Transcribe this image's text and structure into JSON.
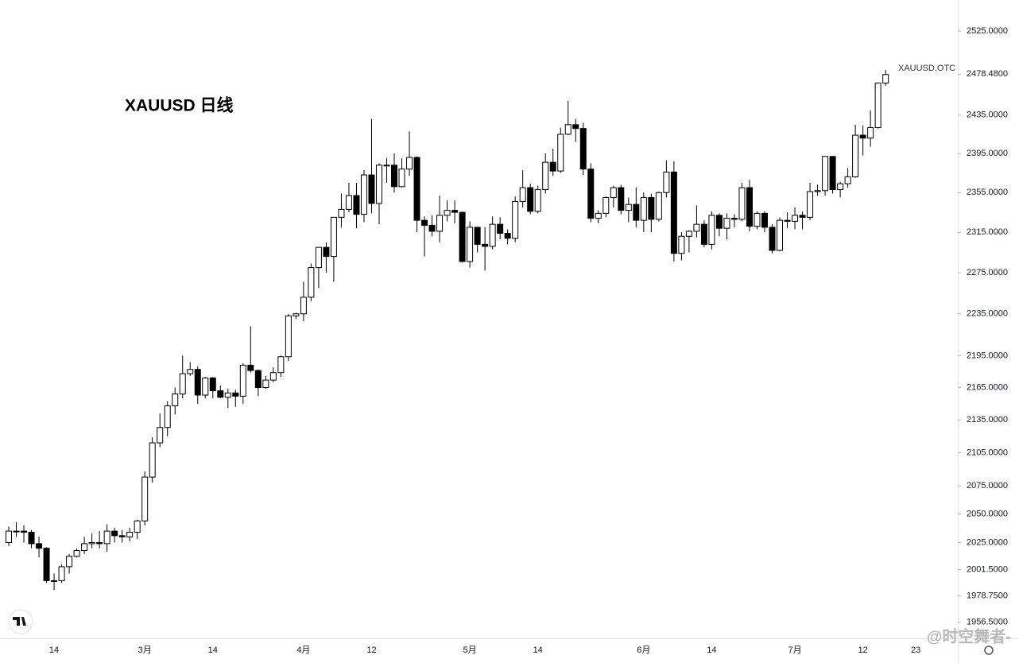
{
  "chart_data": {
    "type": "candlestick",
    "title": "XAUUSD 日线",
    "symbol_label": "XAUUSD.OTC",
    "watermark": "@时空舞者-",
    "log_scale": true,
    "grid": false,
    "up_color": "#ffffff",
    "down_color": "#000000",
    "ylim": [
      1943,
      2559
    ],
    "yticks": [
      {
        "value": 2525,
        "label": "2525.0000"
      },
      {
        "value": 2478.48,
        "label": "2478.4800"
      },
      {
        "value": 2435,
        "label": "2435.0000"
      },
      {
        "value": 2395,
        "label": "2395.0000"
      },
      {
        "value": 2355,
        "label": "2355.0000"
      },
      {
        "value": 2315,
        "label": "2315.0000"
      },
      {
        "value": 2275,
        "label": "2275.0000"
      },
      {
        "value": 2235,
        "label": "2235.0000"
      },
      {
        "value": 2195,
        "label": "2195.0000"
      },
      {
        "value": 2165,
        "label": "2165.0000"
      },
      {
        "value": 2135,
        "label": "2135.0000"
      },
      {
        "value": 2105,
        "label": "2105.0000"
      },
      {
        "value": 2075,
        "label": "2075.0000"
      },
      {
        "value": 2050,
        "label": "2050.0000"
      },
      {
        "value": 2025,
        "label": "2025.0000"
      },
      {
        "value": 2001.5,
        "label": "2001.5000"
      },
      {
        "value": 1978.75,
        "label": "1978.7500"
      },
      {
        "value": 1956.5,
        "label": "1956.5000"
      }
    ],
    "categories": [
      null,
      null,
      null,
      null,
      null,
      null,
      "14",
      null,
      null,
      null,
      null,
      null,
      null,
      null,
      null,
      null,
      null,
      null,
      "3月",
      null,
      null,
      null,
      null,
      null,
      null,
      null,
      null,
      "14",
      null,
      null,
      null,
      null,
      null,
      null,
      null,
      null,
      null,
      null,
      null,
      "4月",
      null,
      null,
      null,
      null,
      null,
      null,
      null,
      null,
      "12",
      null,
      null,
      null,
      null,
      null,
      null,
      null,
      null,
      null,
      null,
      null,
      null,
      "5月",
      null,
      null,
      null,
      null,
      null,
      null,
      null,
      null,
      "14",
      null,
      null,
      null,
      null,
      null,
      null,
      null,
      null,
      null,
      null,
      null,
      null,
      null,
      "6月",
      null,
      null,
      null,
      null,
      null,
      null,
      null,
      null,
      "14",
      null,
      null,
      null,
      null,
      null,
      null,
      null,
      null,
      null,
      null,
      "7月",
      null,
      null,
      null,
      null,
      null,
      null,
      null,
      null,
      "12",
      null,
      null,
      null,
      null,
      null,
      null,
      "23"
    ],
    "open": [
      2025,
      2035,
      2035,
      2034,
      2024,
      2020,
      1992,
      1992,
      2004,
      2013,
      2018,
      2024,
      2025,
      2024,
      2035,
      2031,
      2030,
      2034,
      2044,
      2083,
      2114,
      2128,
      2148,
      2159,
      2178,
      2182,
      2158,
      2174,
      2162,
      2156,
      2160,
      2157,
      2186,
      2181,
      2165,
      2172,
      2179,
      2194,
      2233,
      2235,
      2251,
      2280,
      2300,
      2291,
      2330,
      2338,
      2352,
      2333,
      2373,
      2344,
      2383,
      2383,
      2361,
      2379,
      2391,
      2327,
      2322,
      2316,
      2332,
      2337,
      2335,
      2286,
      2320,
      2303,
      2301,
      2323,
      2314,
      2309,
      2346,
      2360,
      2336,
      2358,
      2386,
      2377,
      2415,
      2425,
      2421,
      2379,
      2329,
      2334,
      2350,
      2360,
      2337,
      2343,
      2327,
      2350,
      2328,
      2355,
      2376,
      2294,
      2311,
      2316,
      2323,
      2303,
      2332,
      2319,
      2329,
      2328,
      2360,
      2321,
      2334,
      2320,
      2297,
      2327,
      2326,
      2332,
      2330,
      2356,
      2357,
      2392,
      2358,
      2364,
      2371,
      2414,
      2411,
      2422,
      2469,
      null,
      null,
      null,
      null
    ],
    "high": [
      2039,
      2043,
      2040,
      2036,
      2030,
      2021,
      1998,
      2006,
      2015,
      2020,
      2030,
      2033,
      2035,
      2041,
      2038,
      2036,
      2038,
      2045,
      2088,
      2119,
      2141,
      2152,
      2165,
      2195,
      2189,
      2185,
      2175,
      2175,
      2167,
      2164,
      2163,
      2188,
      2223,
      2182,
      2176,
      2184,
      2195,
      2235,
      2236,
      2266,
      2284,
      2300,
      2305,
      2330,
      2354,
      2365,
      2365,
      2378,
      2431,
      2385,
      2390,
      2395,
      2390,
      2418,
      2392,
      2331,
      2332,
      2352,
      2347,
      2347,
      2336,
      2326,
      2320,
      2320,
      2331,
      2330,
      2318,
      2351,
      2378,
      2364,
      2362,
      2395,
      2400,
      2422,
      2450,
      2431,
      2427,
      2385,
      2337,
      2351,
      2362,
      2363,
      2350,
      2360,
      2355,
      2354,
      2356,
      2388,
      2387,
      2315,
      2317,
      2342,
      2327,
      2336,
      2334,
      2334,
      2333,
      2365,
      2368,
      2336,
      2336,
      2323,
      2330,
      2335,
      2340,
      2336,
      2365,
      2363,
      2392,
      2392,
      2366,
      2380,
      2425,
      2424,
      2440,
      2469,
      2483,
      null,
      null,
      null,
      null
    ],
    "low": [
      2022,
      2030,
      2025,
      2020,
      2012,
      1990,
      1984,
      1990,
      1998,
      2012,
      2015,
      2020,
      2020,
      2017,
      2025,
      2025,
      2026,
      2028,
      2040,
      2078,
      2110,
      2120,
      2140,
      2155,
      2176,
      2150,
      2155,
      2155,
      2155,
      2146,
      2147,
      2150,
      2179,
      2157,
      2164,
      2170,
      2175,
      2190,
      2230,
      2228,
      2247,
      2260,
      2275,
      2266,
      2320,
      2335,
      2319,
      2325,
      2334,
      2323,
      2365,
      2355,
      2360,
      2372,
      2315,
      2291,
      2311,
      2305,
      2326,
      2324,
      2285,
      2280,
      2295,
      2277,
      2298,
      2308,
      2303,
      2305,
      2340,
      2333,
      2334,
      2354,
      2372,
      2375,
      2414,
      2407,
      2373,
      2325,
      2324,
      2330,
      2340,
      2333,
      2325,
      2320,
      2315,
      2315,
      2326,
      2350,
      2286,
      2287,
      2295,
      2310,
      2300,
      2298,
      2311,
      2308,
      2320,
      2326,
      2316,
      2318,
      2315,
      2294,
      2296,
      2319,
      2318,
      2318,
      2327,
      2352,
      2352,
      2354,
      2350,
      2360,
      2370,
      2393,
      2402,
      2421,
      2466,
      null,
      null,
      null,
      null
    ],
    "close": [
      2035,
      2035,
      2034,
      2024,
      2020,
      1992,
      1992,
      2004,
      2013,
      2018,
      2024,
      2025,
      2024,
      2035,
      2031,
      2030,
      2034,
      2044,
      2083,
      2114,
      2128,
      2148,
      2159,
      2178,
      2182,
      2158,
      2174,
      2162,
      2156,
      2160,
      2157,
      2186,
      2181,
      2165,
      2172,
      2179,
      2194,
      2233,
      2235,
      2251,
      2280,
      2300,
      2291,
      2330,
      2338,
      2352,
      2333,
      2373,
      2344,
      2383,
      2383,
      2361,
      2379,
      2391,
      2327,
      2322,
      2316,
      2332,
      2337,
      2335,
      2286,
      2320,
      2303,
      2301,
      2323,
      2314,
      2309,
      2346,
      2360,
      2336,
      2358,
      2386,
      2377,
      2415,
      2425,
      2421,
      2379,
      2329,
      2334,
      2350,
      2360,
      2337,
      2343,
      2327,
      2350,
      2328,
      2355,
      2376,
      2294,
      2311,
      2316,
      2323,
      2303,
      2332,
      2319,
      2329,
      2328,
      2360,
      2321,
      2334,
      2320,
      2297,
      2327,
      2326,
      2332,
      2330,
      2356,
      2357,
      2392,
      2358,
      2364,
      2371,
      2414,
      2411,
      2422,
      2469,
      2478,
      null,
      null,
      null,
      null
    ]
  }
}
